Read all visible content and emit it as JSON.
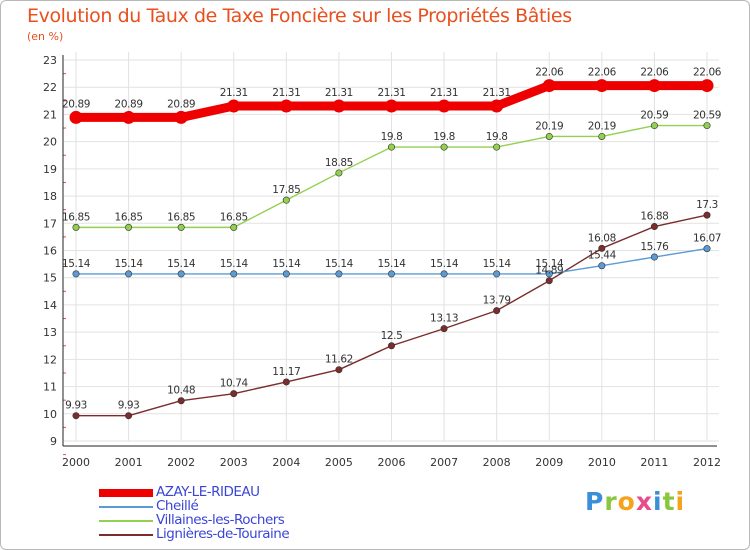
{
  "header": {
    "title": "Evolution du Taux de Taxe Foncière sur les Propriétés Bâties",
    "subtitle": "(en %)"
  },
  "brand": {
    "text": "Proxiti",
    "colors": [
      "#3a8fd8",
      "#8bc63f",
      "#f7a21b",
      "#e84c8b"
    ]
  },
  "chart_data": {
    "type": "line",
    "title": "Evolution du Taux de Taxe Foncière sur les Propriétés Bâties",
    "ylabel": "(en %)",
    "xlabel": "",
    "categories": [
      "2000",
      "2001",
      "2002",
      "2003",
      "2004",
      "2005",
      "2006",
      "2007",
      "2008",
      "2009",
      "2010",
      "2011",
      "2012"
    ],
    "ylim": [
      9,
      23
    ],
    "yticks": [
      "9",
      "10",
      "11",
      "12",
      "13",
      "14",
      "15",
      "16",
      "17",
      "18",
      "19",
      "20",
      "21",
      "22",
      "23"
    ],
    "grid": true,
    "legend_position": "bottom-left",
    "series": [
      {
        "name": "AZAY-LE-RIDEAU",
        "color": "#ee0000",
        "values": [
          20.89,
          20.89,
          20.89,
          21.31,
          21.31,
          21.31,
          21.31,
          21.31,
          21.31,
          22.06,
          22.06,
          22.06,
          22.06
        ],
        "labels": [
          "20.89",
          "20.89",
          "20.89",
          "21.31",
          "21.31",
          "21.31",
          "21.31",
          "21.31",
          "21.31",
          "22.06",
          "22.06",
          "22.06",
          "22.06"
        ]
      },
      {
        "name": "Cheillé",
        "color": "#5b9bd5",
        "values": [
          15.14,
          15.14,
          15.14,
          15.14,
          15.14,
          15.14,
          15.14,
          15.14,
          15.14,
          15.14,
          15.44,
          15.76,
          16.07
        ],
        "labels": [
          "15.14",
          "15.14",
          "15.14",
          "15.14",
          "15.14",
          "15.14",
          "15.14",
          "15.14",
          "15.14",
          "15.14",
          "15.44",
          "15.76",
          "16.07"
        ]
      },
      {
        "name": "Villaines-les-Rochers",
        "color": "#92d050",
        "values": [
          16.85,
          16.85,
          16.85,
          16.85,
          17.85,
          18.85,
          19.8,
          19.8,
          19.8,
          20.19,
          20.19,
          20.59,
          20.59
        ],
        "labels": [
          "16.85",
          "16.85",
          "16.85",
          "16.85",
          "17.85",
          "18.85",
          "19.8",
          "19.8",
          "19.8",
          "20.19",
          "20.19",
          "20.59",
          "20.59"
        ]
      },
      {
        "name": "Lignières-de-Touraine",
        "color": "#7b2c2c",
        "values": [
          9.93,
          9.93,
          10.48,
          10.74,
          11.17,
          11.62,
          12.5,
          13.13,
          13.79,
          14.89,
          16.08,
          16.88,
          17.3
        ],
        "labels": [
          "9.93",
          "9.93",
          "10.48",
          "10.74",
          "11.17",
          "11.62",
          "12.5",
          "13.13",
          "13.79",
          "14.89",
          "16.08",
          "16.88",
          "17.3"
        ]
      }
    ]
  }
}
